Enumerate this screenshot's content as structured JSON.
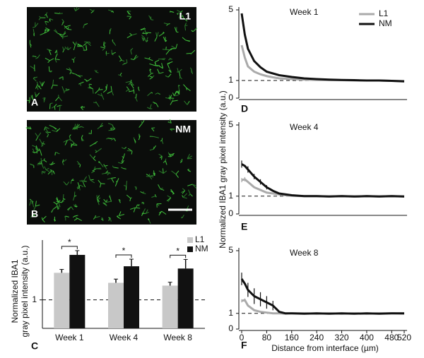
{
  "images": [
    {
      "label": "L1",
      "panel": "A"
    },
    {
      "label": "NM",
      "panel": "B"
    }
  ],
  "chart_data": [
    {
      "type": "bar",
      "panel": "C",
      "ylabel": [
        "Normalized IBA1",
        "gray pixel intensity (a.u.)"
      ],
      "categories": [
        "Week 1",
        "Week 4",
        "Week 8"
      ],
      "series": [
        {
          "name": "L1",
          "color": "#c8c8c8",
          "values": [
            1.95,
            1.6,
            1.5
          ],
          "errors": [
            0.12,
            0.13,
            0.12
          ]
        },
        {
          "name": "NM",
          "color": "#111111",
          "values": [
            2.58,
            2.18,
            2.1
          ],
          "errors": [
            0.15,
            0.25,
            0.32
          ]
        }
      ],
      "ylim": [
        0,
        3.1
      ],
      "yticks": [
        1
      ],
      "reference_line": 1,
      "annotations": [
        "*",
        "*",
        "*"
      ],
      "legend": "upper right"
    },
    {
      "type": "line",
      "panel": "D",
      "title": "Week 1",
      "ylabel": "Normalized IBA1 gray pixel intensity (a.u.)",
      "x": [
        0,
        10,
        20,
        40,
        60,
        80,
        100,
        120,
        140,
        160,
        200,
        240,
        280,
        320,
        360,
        400,
        440,
        480,
        520
      ],
      "series": [
        {
          "name": "L1",
          "color": "#aaaaaa",
          "values": [
            3.0,
            2.3,
            1.8,
            1.5,
            1.35,
            1.25,
            1.18,
            1.12,
            1.1,
            1.08,
            1.05,
            1.03,
            1.02,
            1.02,
            1.0,
            1.0,
            1.0,
            0.98,
            0.97
          ]
        },
        {
          "name": "NM",
          "color": "#111111",
          "values": [
            4.8,
            3.6,
            2.8,
            2.1,
            1.75,
            1.5,
            1.4,
            1.3,
            1.25,
            1.2,
            1.12,
            1.08,
            1.05,
            1.03,
            1.02,
            1.0,
            1.0,
            0.98,
            0.95
          ]
        }
      ],
      "xlim": [
        0,
        520
      ],
      "ylim": [
        0,
        5
      ],
      "yticks": [
        0,
        1,
        5
      ],
      "reference_line": 1,
      "legend": "upper right"
    },
    {
      "type": "line",
      "panel": "E",
      "title": "Week 4",
      "x": [
        0,
        10,
        20,
        40,
        60,
        80,
        100,
        120,
        140,
        160,
        200,
        240,
        280,
        320,
        360,
        400,
        440,
        480,
        520
      ],
      "series": [
        {
          "name": "L1",
          "color": "#aaaaaa",
          "values": [
            1.9,
            1.95,
            1.8,
            1.5,
            1.35,
            1.2,
            1.15,
            1.1,
            1.05,
            1.02,
            1.0,
            1.0,
            0.98,
            1.0,
            0.98,
            1.0,
            0.98,
            1.0,
            0.98
          ],
          "errors": [
            0.12,
            0.12,
            null,
            null,
            null,
            null,
            null,
            null,
            null,
            null,
            null,
            null,
            null,
            null,
            null,
            null,
            null,
            null,
            null
          ]
        },
        {
          "name": "NM",
          "color": "#111111",
          "values": [
            2.8,
            2.7,
            2.5,
            2.1,
            1.8,
            1.5,
            1.3,
            1.15,
            1.1,
            1.05,
            1.0,
            1.0,
            0.98,
            1.0,
            0.98,
            1.0,
            0.98,
            1.0,
            0.98
          ],
          "errors": [
            0.2,
            null,
            0.18,
            0.15,
            0.15,
            0.12,
            null,
            null,
            null,
            null,
            null,
            null,
            null,
            null,
            null,
            null,
            null,
            null,
            null
          ]
        }
      ],
      "xlim": [
        0,
        520
      ],
      "ylim": [
        0,
        5
      ],
      "yticks": [
        0,
        1,
        5
      ],
      "reference_line": 1
    },
    {
      "type": "line",
      "panel": "F",
      "title": "Week 8",
      "xlabel": "Distance from interface (µm)",
      "x": [
        0,
        10,
        20,
        40,
        60,
        80,
        100,
        120,
        140,
        160,
        200,
        240,
        280,
        320,
        360,
        400,
        440,
        480,
        520
      ],
      "series": [
        {
          "name": "L1",
          "color": "#aaaaaa",
          "values": [
            1.8,
            1.85,
            1.5,
            1.2,
            1.1,
            1.05,
            1.0,
            1.0,
            0.98,
            1.0,
            1.0,
            0.98,
            1.0,
            0.98,
            1.0,
            0.98,
            1.0,
            1.0,
            0.98
          ],
          "errors": [
            0.1,
            0.1,
            null,
            null,
            null,
            null,
            null,
            null,
            null,
            null,
            null,
            null,
            null,
            null,
            null,
            null,
            null,
            null,
            null
          ]
        },
        {
          "name": "NM",
          "color": "#111111",
          "values": [
            3.2,
            2.9,
            2.5,
            2.1,
            1.9,
            1.7,
            1.5,
            1.1,
            1.0,
            1.0,
            0.98,
            1.0,
            0.98,
            1.0,
            0.98,
            1.0,
            0.98,
            1.0,
            1.0
          ],
          "errors": [
            0.4,
            null,
            0.45,
            0.5,
            0.45,
            0.4,
            0.3,
            null,
            null,
            null,
            null,
            null,
            null,
            null,
            null,
            null,
            null,
            null,
            null
          ]
        }
      ],
      "xlim": [
        0,
        520
      ],
      "ylim": [
        0,
        5
      ],
      "yticks": [
        0,
        1,
        5
      ],
      "xticks": [
        0,
        80,
        160,
        240,
        320,
        400,
        480,
        520
      ],
      "reference_line": 1
    }
  ]
}
